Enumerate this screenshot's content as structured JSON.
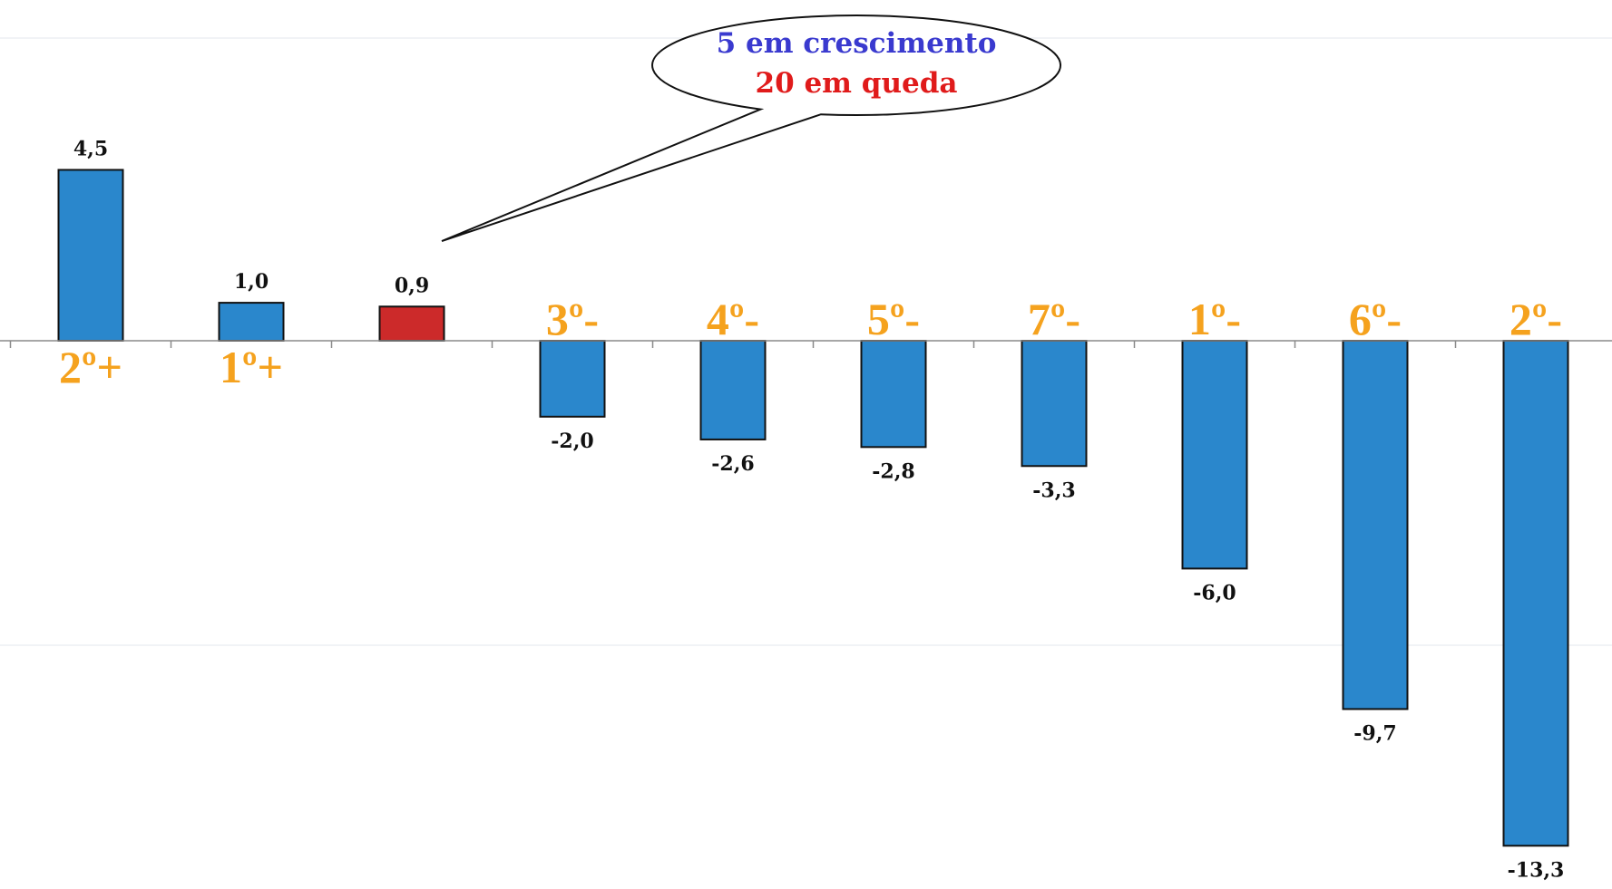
{
  "chart_data": {
    "type": "bar",
    "categories": [
      "2º+",
      "1º+",
      "",
      "3º-",
      "4º-",
      "5º-",
      "7º-",
      "1º-",
      "6º-",
      "2º-"
    ],
    "values": [
      4.5,
      1.0,
      0.9,
      -2.0,
      -2.6,
      -2.8,
      -3.3,
      -6.0,
      -9.7,
      -13.3
    ],
    "value_labels": [
      "4,5",
      "1,0",
      "0,9",
      "-2,0",
      "-2,6",
      "-2,8",
      "-3,3",
      "-6,0",
      "-9,7",
      "-13,3"
    ],
    "highlight_index": 2,
    "ylim": [
      -13.3,
      4.5
    ],
    "grid": false,
    "colors": {
      "bar": "#2a87cc",
      "highlight": "#cc2a2a",
      "bar_stroke": "#111111",
      "rank_label": "#f5a21e",
      "callout_line1": "#3a3acf",
      "callout_line2": "#e01b1b"
    },
    "callout": {
      "line1": "5 em crescimento",
      "line2": "20 em queda"
    }
  }
}
